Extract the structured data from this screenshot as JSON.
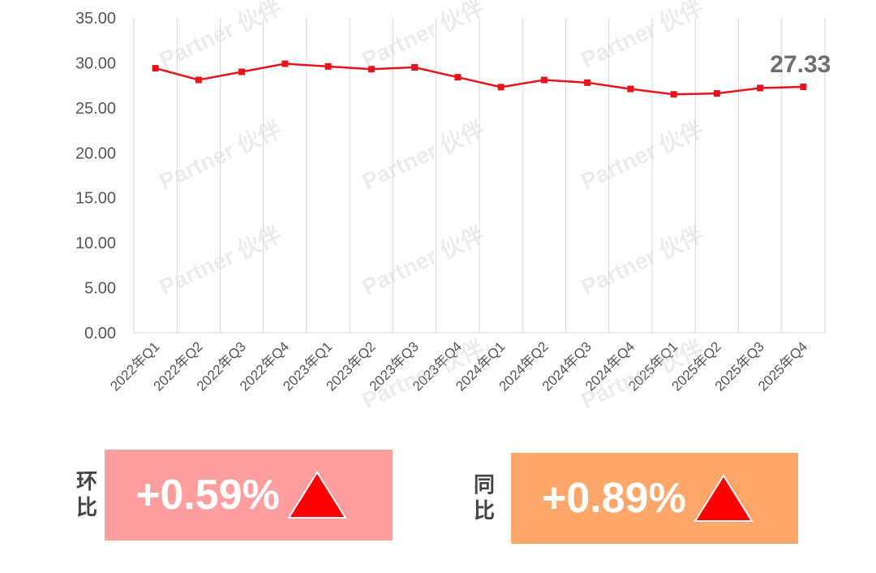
{
  "chart_data": {
    "type": "line",
    "categories": [
      "2022年Q1",
      "2022年Q2",
      "2022年Q3",
      "2022年Q4",
      "2023年Q1",
      "2023年Q2",
      "2023年Q3",
      "2023年Q4",
      "2024年Q1",
      "2024年Q2",
      "2024年Q3",
      "2024年Q4",
      "2025年Q1",
      "2025年Q2",
      "2025年Q3",
      "2025年Q4"
    ],
    "series": [
      {
        "values": [
          29.4,
          28.1,
          29.0,
          29.9,
          29.6,
          29.3,
          29.5,
          28.4,
          27.3,
          28.1,
          27.8,
          27.1,
          26.5,
          26.6,
          27.2,
          27.33
        ],
        "color": "#e8141a"
      }
    ],
    "ylim": [
      0,
      35
    ],
    "yticks": [
      "0.00",
      "5.00",
      "10.00",
      "15.00",
      "20.00",
      "25.00",
      "30.00",
      "35.00"
    ],
    "last_label": "27.33",
    "grid": "vertical",
    "title": "",
    "xlabel": "",
    "ylabel": ""
  },
  "watermark": "Partner 伙伴",
  "qoq": {
    "label": "环比",
    "value": "+0.59%",
    "color": "#ff9e9e",
    "arrow_color": "#ff0000"
  },
  "yoy": {
    "label": "同比",
    "value": "+0.89%",
    "color": "#ffa76b",
    "arrow_color": "#ff0000"
  }
}
